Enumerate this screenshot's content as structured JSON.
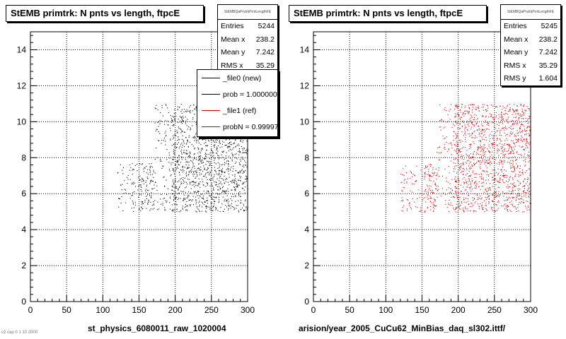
{
  "colors": {
    "new": "#000000",
    "ref": "#cc0000"
  },
  "chart_data": [
    {
      "type": "scatter",
      "title": "StEMB primtrk: N pnts vs length, ftpcE",
      "xlabel": "st_physics_6080011_raw_1020004",
      "ylabel": "",
      "xlim": [
        0,
        300
      ],
      "ylim": [
        0,
        15
      ],
      "xticks": [
        "0",
        "50",
        "100",
        "150",
        "200",
        "250",
        "300"
      ],
      "yticks": [
        "0",
        "2",
        "4",
        "6",
        "8",
        "10",
        "12",
        "14"
      ],
      "grid": true,
      "color": "#000000",
      "series": [
        {
          "name": "_file0 (new)",
          "x_range": [
            120,
            300
          ],
          "y_range": [
            5,
            11
          ],
          "point_count": 5244
        }
      ],
      "stats": {
        "header": "StEMBQaPrvtrkPrntLengthFE",
        "rows": [
          {
            "label": "Entries",
            "value": "5244"
          },
          {
            "label": "Mean x",
            "value": "238.2"
          },
          {
            "label": "Mean y",
            "value": "7.242"
          },
          {
            "label": "RMS x",
            "value": "35.29"
          }
        ]
      },
      "legend": {
        "placement": "top-right",
        "entries": [
          {
            "label": "_file0 (new)",
            "color": "#000000"
          },
          {
            "label": "prob = 1.000000",
            "color": "#000000"
          },
          {
            "label": "_file1 (ref)",
            "color": "#cc0000"
          },
          {
            "label": "probN = 0.999970",
            "color": "#cc0000"
          }
        ]
      }
    },
    {
      "type": "scatter",
      "title": "StEMB primtrk: N pnts vs length, ftpcE",
      "xlabel": "arision/year_2005_CuCu62_MinBias_daq_sl302.ittf/",
      "ylabel": "",
      "xlim": [
        0,
        300
      ],
      "ylim": [
        0,
        15
      ],
      "xticks": [
        "0",
        "50",
        "100",
        "150",
        "200",
        "250",
        "300"
      ],
      "yticks": [
        "0",
        "2",
        "4",
        "6",
        "8",
        "10",
        "12",
        "14"
      ],
      "grid": true,
      "color": "#cc0000",
      "series": [
        {
          "name": "_file1 (ref)",
          "x_range": [
            120,
            300
          ],
          "y_range": [
            5,
            11
          ],
          "point_count": 5245
        }
      ],
      "stats": {
        "header": "StEMBQaPrvtrkPrntLengthFE",
        "rows": [
          {
            "label": "Entries",
            "value": "5245"
          },
          {
            "label": "Mean x",
            "value": "238.2"
          },
          {
            "label": "Mean y",
            "value": "7.242"
          },
          {
            "label": "RMS x",
            "value": "35.29"
          },
          {
            "label": "RMS y",
            "value": "1.604"
          }
        ]
      }
    }
  ],
  "footer_text": "c2 cap 0 1 10 2000"
}
